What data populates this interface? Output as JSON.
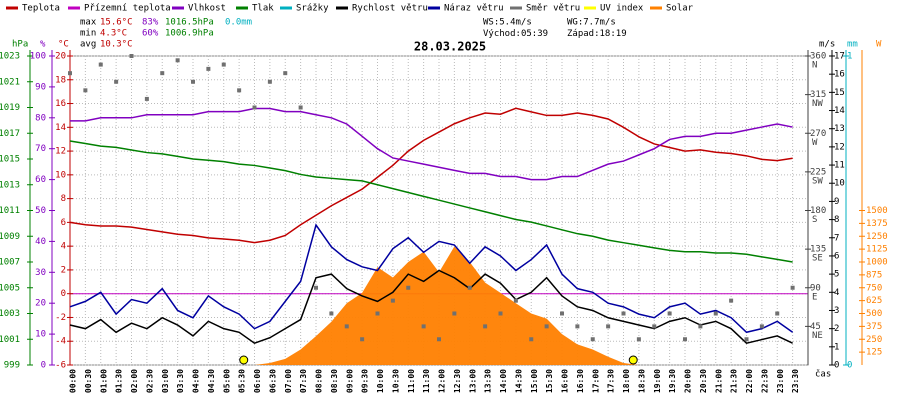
{
  "chart_data": {
    "type": "line",
    "title": "28.03.2025",
    "xlabel": "čas",
    "categories": [
      "00:00",
      "00:30",
      "01:00",
      "01:30",
      "02:00",
      "02:30",
      "03:00",
      "03:30",
      "04:00",
      "04:30",
      "05:00",
      "05:30",
      "06:00",
      "06:30",
      "07:00",
      "07:30",
      "08:00",
      "08:30",
      "09:00",
      "09:30",
      "10:00",
      "10:30",
      "11:00",
      "11:30",
      "12:00",
      "12:30",
      "13:00",
      "13:30",
      "14:00",
      "14:30",
      "15:00",
      "15:30",
      "16:00",
      "16:30",
      "17:00",
      "17:30",
      "18:00",
      "18:30",
      "19:00",
      "19:30",
      "20:00",
      "20:30",
      "21:00",
      "21:30",
      "22:00",
      "22:30",
      "23:00",
      "23:30"
    ],
    "axes": {
      "hpa": {
        "label": "hPa",
        "color": "#008000",
        "lim": [
          999,
          1023
        ],
        "ticks": [
          999,
          1001,
          1003,
          1005,
          1007,
          1009,
          1011,
          1013,
          1015,
          1017,
          1019,
          1021,
          1023
        ]
      },
      "pct": {
        "label": "%",
        "color": "#8000c0",
        "lim": [
          0,
          100
        ],
        "ticks": [
          0,
          10,
          20,
          30,
          40,
          50,
          60,
          70,
          80,
          90,
          100
        ]
      },
      "temp": {
        "label": "°C",
        "color": "#c00000",
        "lim": [
          -6,
          20
        ],
        "ticks": [
          -6,
          -4,
          -2,
          0,
          2,
          4,
          6,
          8,
          10,
          12,
          14,
          16,
          18,
          20
        ]
      },
      "dir": {
        "color": "#404040",
        "lim": [
          0,
          360
        ],
        "ticks": [
          45,
          90,
          135,
          180,
          225,
          270,
          315,
          360
        ],
        "compass": [
          "NE",
          "E",
          "SE",
          "S",
          "SW",
          "W",
          "NW",
          "N"
        ]
      },
      "ms": {
        "label": "m/s",
        "color": "#000000",
        "lim": [
          0,
          17
        ],
        "ticks": [
          0,
          1,
          2,
          3,
          4,
          5,
          6,
          7,
          8,
          9,
          10,
          11,
          12,
          13,
          14,
          15,
          16,
          17
        ]
      },
      "mm": {
        "label": "mm",
        "color": "#00b0c0",
        "lim": [
          0,
          1
        ],
        "ticks": [
          0,
          1
        ]
      },
      "w": {
        "label": "W",
        "color": "#ff8000",
        "lim": [
          0,
          3000
        ],
        "ticks": [
          125,
          250,
          375,
          500,
          625,
          750,
          875,
          1000,
          1125,
          1250,
          1375,
          1500
        ]
      }
    },
    "series": [
      {
        "name": "Teplota",
        "color": "#c00000",
        "axis": "temp",
        "values": [
          6.0,
          5.8,
          5.7,
          5.7,
          5.6,
          5.4,
          5.2,
          5.0,
          4.9,
          4.7,
          4.6,
          4.5,
          4.3,
          4.5,
          4.9,
          5.8,
          6.6,
          7.4,
          8.1,
          8.8,
          9.8,
          10.8,
          12.0,
          12.9,
          13.6,
          14.3,
          14.8,
          15.2,
          15.1,
          15.6,
          15.3,
          15.0,
          15.0,
          15.2,
          15.0,
          14.7,
          14.0,
          13.2,
          12.6,
          12.3,
          12.0,
          12.1,
          11.9,
          11.8,
          11.6,
          11.3,
          11.2,
          11.4
        ]
      },
      {
        "name": "Přízemní teplota",
        "color": "#c000c0"
      },
      {
        "name": "Vlhkost",
        "color": "#8000c0",
        "axis": "pct",
        "values": [
          79,
          79,
          80,
          80,
          80,
          81,
          81,
          81,
          81,
          82,
          82,
          82,
          83,
          83,
          82,
          82,
          81,
          80,
          78,
          74,
          70,
          67,
          66,
          65,
          64,
          63,
          62,
          62,
          61,
          61,
          60,
          60,
          61,
          61,
          63,
          65,
          66,
          68,
          70,
          73,
          74,
          74,
          75,
          75,
          76,
          77,
          78,
          77
        ]
      },
      {
        "name": "Tlak",
        "color": "#008000",
        "axis": "hpa",
        "values": [
          1016.4,
          1016.2,
          1016.0,
          1015.9,
          1015.7,
          1015.5,
          1015.4,
          1015.2,
          1015.0,
          1014.9,
          1014.8,
          1014.6,
          1014.5,
          1014.3,
          1014.1,
          1013.8,
          1013.6,
          1013.5,
          1013.4,
          1013.3,
          1013.0,
          1012.7,
          1012.4,
          1012.1,
          1011.8,
          1011.5,
          1011.2,
          1010.9,
          1010.6,
          1010.3,
          1010.1,
          1009.8,
          1009.5,
          1009.2,
          1009.0,
          1008.7,
          1008.5,
          1008.3,
          1008.1,
          1007.9,
          1007.8,
          1007.8,
          1007.7,
          1007.7,
          1007.6,
          1007.4,
          1007.2,
          1007.0
        ]
      },
      {
        "name": "Srážky",
        "color": "#00b0c0"
      },
      {
        "name": "Rychlost větru",
        "color": "#000000",
        "axis": "ms",
        "values": [
          2.2,
          2.0,
          2.5,
          1.8,
          2.3,
          2.0,
          2.6,
          2.2,
          1.6,
          2.4,
          2.0,
          1.8,
          1.2,
          1.5,
          2.0,
          2.5,
          4.8,
          5.0,
          4.2,
          3.8,
          3.5,
          4.0,
          5.0,
          4.6,
          5.2,
          4.8,
          4.2,
          5.0,
          4.5,
          3.6,
          4.0,
          4.8,
          3.8,
          3.2,
          3.0,
          2.6,
          2.4,
          2.2,
          2.0,
          2.4,
          2.6,
          2.2,
          2.4,
          2.0,
          1.2,
          1.4,
          1.6,
          1.2
        ]
      },
      {
        "name": "Náraz větru",
        "color": "#0000a0",
        "axis": "ms",
        "values": [
          3.2,
          3.5,
          4.0,
          2.8,
          3.6,
          3.4,
          4.2,
          3.0,
          2.6,
          3.8,
          3.2,
          2.8,
          2.0,
          2.4,
          3.5,
          4.6,
          7.7,
          6.5,
          5.8,
          5.4,
          5.2,
          6.4,
          7.0,
          6.2,
          6.8,
          6.6,
          5.6,
          6.5,
          6.0,
          5.2,
          5.8,
          6.6,
          5.0,
          4.2,
          4.0,
          3.4,
          3.2,
          2.8,
          2.6,
          3.2,
          3.4,
          2.8,
          3.0,
          2.6,
          1.8,
          2.0,
          2.4,
          1.8
        ]
      },
      {
        "name": "Směr větru",
        "color": "#707070",
        "axis": "dir",
        "kind": "points",
        "values": [
          340,
          320,
          350,
          330,
          360,
          310,
          340,
          355,
          330,
          345,
          350,
          320,
          300,
          330,
          340,
          300,
          90,
          60,
          45,
          30,
          60,
          75,
          90,
          45,
          30,
          60,
          90,
          45,
          60,
          75,
          30,
          45,
          60,
          45,
          30,
          45,
          60,
          30,
          45,
          60,
          30,
          45,
          60,
          75,
          30,
          45,
          60,
          90
        ]
      },
      {
        "name": "UV index",
        "color": "#ffff00"
      },
      {
        "name": "Solar",
        "color": "#ff8000",
        "axis": "w",
        "kind": "area",
        "values": [
          0,
          0,
          0,
          0,
          0,
          0,
          0,
          0,
          0,
          0,
          0,
          0,
          0,
          20,
          60,
          150,
          280,
          420,
          600,
          700,
          950,
          850,
          1000,
          1100,
          900,
          1150,
          1000,
          800,
          700,
          600,
          500,
          450,
          300,
          200,
          150,
          80,
          20,
          0,
          0,
          0,
          0,
          0,
          0,
          0,
          0,
          0,
          0,
          0
        ]
      }
    ],
    "stats": {
      "rows": [
        {
          "label": "max",
          "items": [
            "15.6°C",
            "83%",
            "1016.5hPa",
            "0.0mm"
          ]
        },
        {
          "label": "min",
          "items": [
            "4.3°C",
            "60%",
            "1006.9hPa"
          ]
        },
        {
          "label": "avg",
          "items": [
            "10.3°C"
          ]
        }
      ],
      "colors": [
        "#c00000",
        "#8000c0",
        "#008000",
        "#00b0c0"
      ]
    },
    "wind": {
      "ws": "WS:5.4m/s",
      "wg": "WG:7.7m/s"
    },
    "sun": {
      "sunrise_label": "Východ:",
      "sunrise": "05:39",
      "sunset_label": "Západ:",
      "sunset": "18:19"
    }
  }
}
